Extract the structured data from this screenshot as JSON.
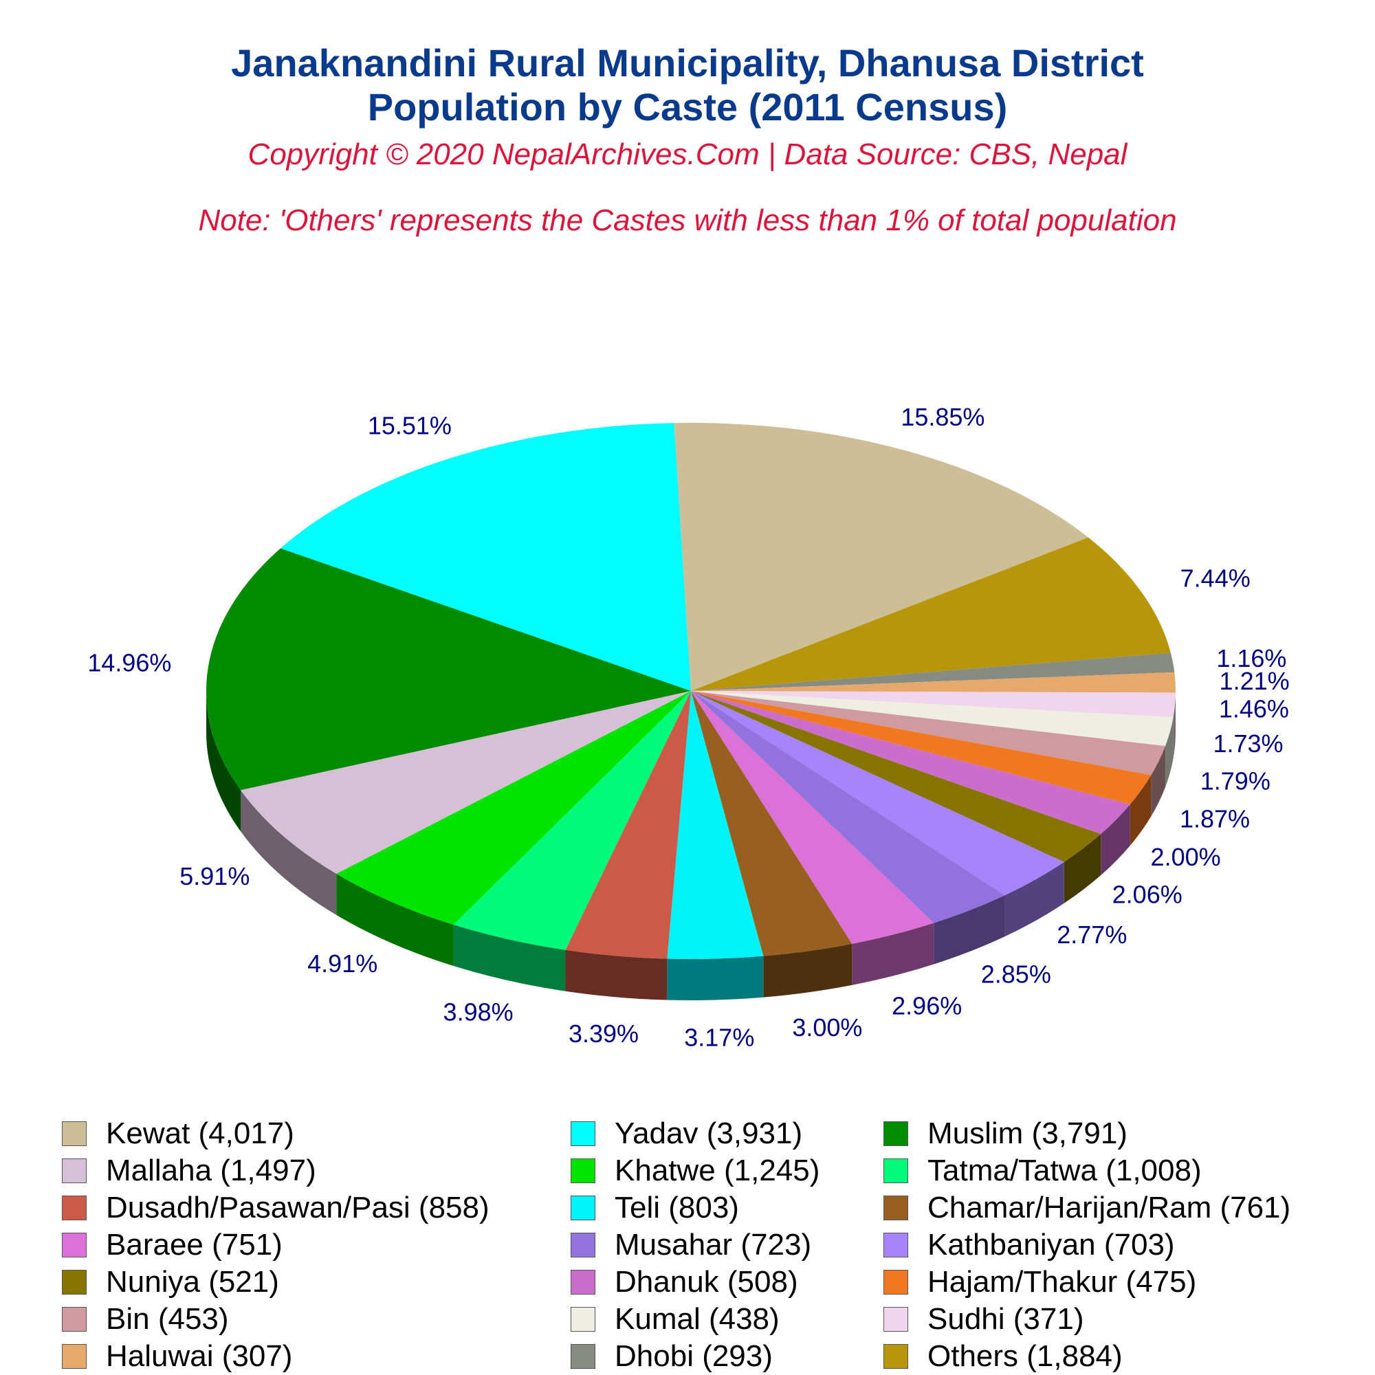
{
  "header": {
    "title_line1": "Janaknandini Rural Municipality, Dhanusa District",
    "title_line2": "Population by Caste (2011 Census)",
    "copyright": "Copyright © 2020 NepalArchives.Com | Data Source: CBS, Nepal",
    "note": "Note: 'Others' represents the Castes with less than 1% of total population"
  },
  "chart_data": {
    "type": "pie",
    "style": "3d",
    "legend_position": "bottom",
    "categories": [
      "Kewat",
      "Others",
      "Dhobi",
      "Haluwai",
      "Sudhi",
      "Kumal",
      "Bin",
      "Hajam/Thakur",
      "Dhanuk",
      "Nuniya",
      "Kathbaniyan",
      "Musahar",
      "Baraee",
      "Chamar/Harijan/Ram",
      "Teli",
      "Dusadh/Pasawan/Pasi",
      "Tatma/Tatwa",
      "Khatwe",
      "Mallaha",
      "Muslim",
      "Yadav"
    ],
    "values": [
      4017,
      1884,
      293,
      307,
      371,
      438,
      453,
      475,
      508,
      521,
      703,
      723,
      751,
      761,
      803,
      858,
      1008,
      1245,
      1497,
      3791,
      3931
    ],
    "value_labels": [
      "15.85%",
      "7.44%",
      "1.16%",
      "1.21%",
      "1.46%",
      "1.73%",
      "1.79%",
      "1.87%",
      "2.00%",
      "2.06%",
      "2.77%",
      "2.85%",
      "2.96%",
      "3.00%",
      "3.17%",
      "3.39%",
      "3.98%",
      "4.91%",
      "5.91%",
      "14.96%",
      "15.51%"
    ],
    "colors": [
      "#cdbe97",
      "#b8960b",
      "#878c82",
      "#e6a96b",
      "#f0d5ec",
      "#eeeee2",
      "#cf9ba0",
      "#f07820",
      "#cc6ccc",
      "#877400",
      "#a884fc",
      "#9272dc",
      "#dc72d7",
      "#976020",
      "#00f3f7",
      "#cd5a46",
      "#00fa7a",
      "#00e400",
      "#d8bfd8",
      "#008b00",
      "#00ffff"
    ],
    "legend": [
      {
        "label": "Kewat (4,017)",
        "color": "#cdbe97"
      },
      {
        "label": "Yadav (3,931)",
        "color": "#00ffff"
      },
      {
        "label": "Muslim (3,791)",
        "color": "#008b00"
      },
      {
        "label": "Mallaha (1,497)",
        "color": "#d8bfd8"
      },
      {
        "label": "Khatwe (1,245)",
        "color": "#00e400"
      },
      {
        "label": "Tatma/Tatwa (1,008)",
        "color": "#00fa7a"
      },
      {
        "label": "Dusadh/Pasawan/Pasi (858)",
        "color": "#cd5a46"
      },
      {
        "label": "Teli (803)",
        "color": "#00f3f7"
      },
      {
        "label": "Chamar/Harijan/Ram (761)",
        "color": "#976020"
      },
      {
        "label": "Baraee (751)",
        "color": "#dc72d7"
      },
      {
        "label": "Musahar (723)",
        "color": "#9272dc"
      },
      {
        "label": "Kathbaniyan (703)",
        "color": "#a884fc"
      },
      {
        "label": "Nuniya (521)",
        "color": "#877400"
      },
      {
        "label": "Dhanuk (508)",
        "color": "#cc6ccc"
      },
      {
        "label": "Hajam/Thakur (475)",
        "color": "#f07820"
      },
      {
        "label": "Bin (453)",
        "color": "#cf9ba0"
      },
      {
        "label": "Kumal (438)",
        "color": "#eeeee2"
      },
      {
        "label": "Sudhi (371)",
        "color": "#f0d5ec"
      },
      {
        "label": "Haluwai (307)",
        "color": "#e6a96b"
      },
      {
        "label": "Dhobi (293)",
        "color": "#878c82"
      },
      {
        "label": "Others (1,884)",
        "color": "#b8960b"
      }
    ]
  }
}
